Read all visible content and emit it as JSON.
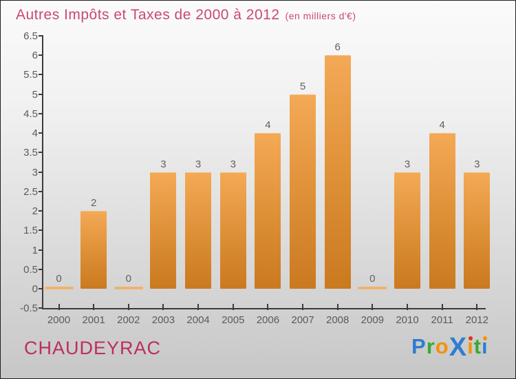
{
  "title": {
    "main": "Autres Impôts et Taxes de 2000 à 2012",
    "unit_note": "(en milliers d'€)"
  },
  "chart_data": {
    "type": "bar",
    "title": "Autres Impôts et Taxes de 2000 à 2012",
    "subtitle": "(en milliers d'€)",
    "categories": [
      "2000",
      "2001",
      "2002",
      "2003",
      "2004",
      "2005",
      "2006",
      "2007",
      "2008",
      "2009",
      "2010",
      "2011",
      "2012"
    ],
    "values": [
      0,
      2,
      0,
      3,
      3,
      3,
      4,
      5,
      6,
      0,
      3,
      4,
      3
    ],
    "bar_value_labels": [
      "0",
      "2",
      "0",
      "3",
      "3",
      "3",
      "4",
      "5",
      "6",
      "0",
      "3",
      "4",
      "3"
    ],
    "xlabel": "",
    "ylabel": "",
    "ylim": [
      -0.5,
      6.5
    ],
    "yticks": [
      "-0.5",
      "0",
      "0.5",
      "1",
      "1.5",
      "2",
      "2.5",
      "3",
      "3.5",
      "4",
      "4.5",
      "5",
      "5.5",
      "6",
      "6.5"
    ],
    "grid": false,
    "legend": null,
    "colors": {
      "bar_gradient_top": "#f4a956",
      "bar_gradient_bottom": "#ca791f",
      "zero_bar": "#f1b36e",
      "axis": "#3b3b3b",
      "tick_label": "#5a5a5a",
      "value_label": "#606060"
    }
  },
  "footer": {
    "commune": "CHAUDEYRAC",
    "logo": {
      "text": "Proxiti",
      "letters": [
        {
          "ch": "P",
          "color": "#2d7dd2"
        },
        {
          "ch": "r",
          "color": "#3aaa35"
        },
        {
          "ch": "o",
          "color": "#f39207"
        },
        {
          "ch": "X",
          "color": "#2d7dd2",
          "big": true
        },
        {
          "ch": "i",
          "color": "#f39207",
          "dot": "#e53212"
        },
        {
          "ch": "t",
          "color": "#3aaa35"
        },
        {
          "ch": "i",
          "color": "#2d7dd2",
          "dot": "#f39207"
        }
      ]
    }
  },
  "colors": {
    "title_text": "#c94970",
    "commune_text": "#bd2d5d",
    "background_top": "#fbfbfb",
    "background_bottom": "#c7c7c7"
  }
}
